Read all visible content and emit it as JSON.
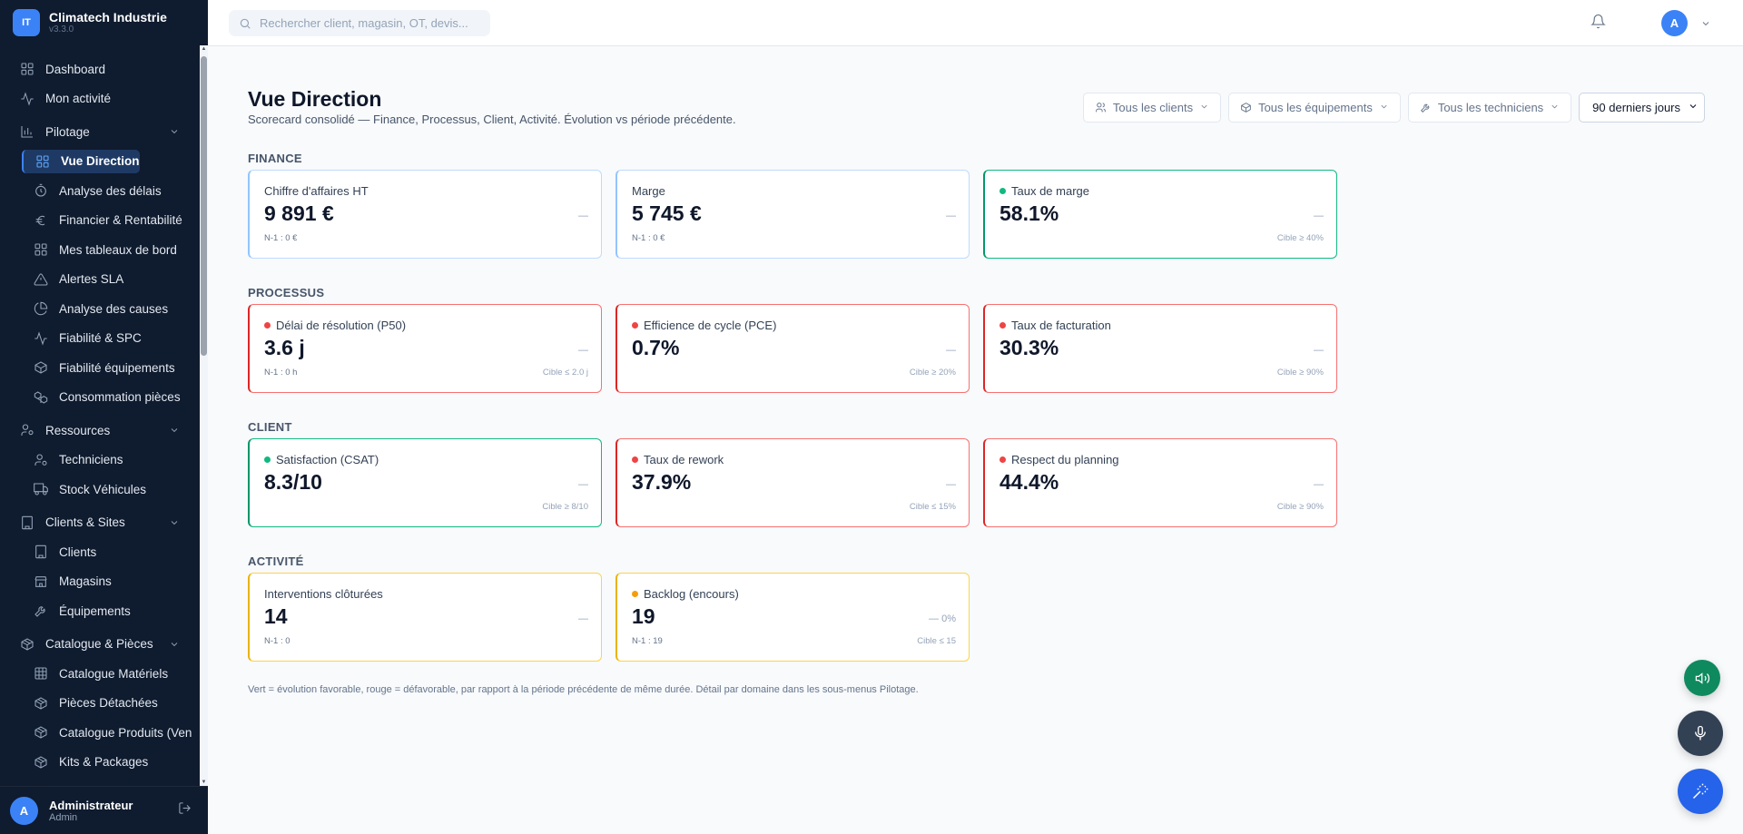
{
  "app": {
    "name": "Climatech Industrie",
    "version": "v3.3.0",
    "logo_text": "IT"
  },
  "search": {
    "placeholder": "Rechercher client, magasin, OT, devis..."
  },
  "topbar": {
    "avatar": "A"
  },
  "sidebar": {
    "items": [
      {
        "label": "Dashboard",
        "icon": "grid-icon",
        "type": "top"
      },
      {
        "label": "Mon activité",
        "icon": "activity-icon",
        "type": "top"
      },
      {
        "label": "Pilotage",
        "icon": "bar-chart-icon",
        "type": "group"
      },
      {
        "label": "Vue Direction",
        "icon": "grid-icon",
        "type": "active"
      },
      {
        "label": "Analyse des délais",
        "icon": "timer-icon",
        "type": "sub"
      },
      {
        "label": "Financier & Rentabilité",
        "icon": "euro-icon",
        "type": "sub"
      },
      {
        "label": "Mes tableaux de bord",
        "icon": "grid-icon",
        "type": "sub"
      },
      {
        "label": "Alertes SLA",
        "icon": "alert-triangle-icon",
        "type": "sub"
      },
      {
        "label": "Analyse des causes",
        "icon": "pie-icon",
        "type": "sub"
      },
      {
        "label": "Fiabilité & SPC",
        "icon": "activity-icon",
        "type": "sub"
      },
      {
        "label": "Fiabilité équipements",
        "icon": "box-icon",
        "type": "sub"
      },
      {
        "label": "Consommation pièces",
        "icon": "boxes-icon",
        "type": "sub"
      },
      {
        "label": "Ressources",
        "icon": "users-icon",
        "type": "group"
      },
      {
        "label": "Techniciens",
        "icon": "user-gear-icon",
        "type": "sub"
      },
      {
        "label": "Stock Véhicules",
        "icon": "truck-icon",
        "type": "sub"
      },
      {
        "label": "Clients & Sites",
        "icon": "building-icon",
        "type": "group"
      },
      {
        "label": "Clients",
        "icon": "building-icon",
        "type": "sub"
      },
      {
        "label": "Magasins",
        "icon": "store-icon",
        "type": "sub"
      },
      {
        "label": "Équipements",
        "icon": "wrench-icon",
        "type": "sub"
      },
      {
        "label": "Catalogue & Pièces",
        "icon": "package-icon",
        "type": "group"
      },
      {
        "label": "Catalogue Matériels",
        "icon": "grid3-icon",
        "type": "sub"
      },
      {
        "label": "Pièces Détachées",
        "icon": "package-icon",
        "type": "sub"
      },
      {
        "label": "Catalogue Produits (Ven",
        "icon": "package-icon",
        "type": "sub"
      },
      {
        "label": "Kits & Packages",
        "icon": "package-icon",
        "type": "sub"
      }
    ],
    "user": {
      "name": "Administrateur",
      "role": "Admin",
      "avatar": "A"
    }
  },
  "page": {
    "title": "Vue Direction",
    "subtitle": "Scorecard consolidé — Finance, Processus, Client, Activité. Évolution vs période précédente.",
    "footnote": "Vert = évolution favorable, rouge = défavorable, par rapport à la période précédente de même durée. Détail par domaine dans les sous-menus Pilotage."
  },
  "filters": {
    "clients": "Tous les clients",
    "equipements": "Tous les équipements",
    "techniciens": "Tous les techniciens",
    "period": "90 derniers jours"
  },
  "sections": [
    {
      "label": "FINANCE",
      "cards": [
        {
          "title": "Chiffre d'affaires HT",
          "value": "9 891 €",
          "prev": "N-1 : 0 €",
          "trend": "—",
          "target": "",
          "status": "blue"
        },
        {
          "title": "Marge",
          "value": "5 745 €",
          "prev": "N-1 : 0 €",
          "trend": "—",
          "target": "",
          "status": "blue"
        },
        {
          "title": "Taux de marge",
          "value": "58.1%",
          "prev": "",
          "trend": "—",
          "target": "Cible ≥ 40%",
          "status": "green"
        }
      ]
    },
    {
      "label": "PROCESSUS",
      "cards": [
        {
          "title": "Délai de résolution (P50)",
          "value": "3.6 j",
          "prev": "N-1 : 0 h",
          "trend": "—",
          "target": "Cible ≤ 2.0 j",
          "status": "red"
        },
        {
          "title": "Efficience de cycle (PCE)",
          "value": "0.7%",
          "prev": "",
          "trend": "—",
          "target": "Cible ≥ 20%",
          "status": "red"
        },
        {
          "title": "Taux de facturation",
          "value": "30.3%",
          "prev": "",
          "trend": "—",
          "target": "Cible ≥ 90%",
          "status": "red"
        }
      ]
    },
    {
      "label": "CLIENT",
      "cards": [
        {
          "title": "Satisfaction (CSAT)",
          "value": "8.3/10",
          "prev": "",
          "trend": "—",
          "target": "Cible ≥ 8/10",
          "status": "green"
        },
        {
          "title": "Taux de rework",
          "value": "37.9%",
          "prev": "",
          "trend": "—",
          "target": "Cible ≤ 15%",
          "status": "red"
        },
        {
          "title": "Respect du planning",
          "value": "44.4%",
          "prev": "",
          "trend": "—",
          "target": "Cible ≥ 90%",
          "status": "red"
        }
      ]
    },
    {
      "label": "ACTIVITÉ",
      "cards": [
        {
          "title": "Interventions clôturées",
          "value": "14",
          "prev": "N-1 : 0",
          "trend": "—",
          "target": "",
          "status": "yellow"
        },
        {
          "title": "Backlog (encours)",
          "value": "19",
          "prev": "N-1 : 19",
          "trend": "— 0%",
          "target": "Cible ≤ 15",
          "status": "yellow-dot"
        }
      ]
    }
  ],
  "colors": {
    "sidebar_bg": "#0f1b2e",
    "accent": "#3b82f6",
    "green": "#10b981",
    "red": "#ef4444",
    "yellow": "#fcd34d"
  }
}
